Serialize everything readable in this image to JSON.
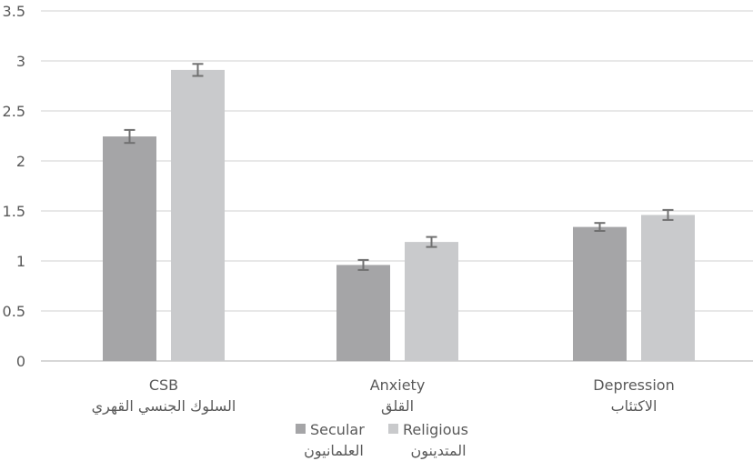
{
  "chart_data": {
    "type": "bar",
    "title": "",
    "xlabel": "",
    "ylabel": "",
    "ylim": [
      0,
      3.5
    ],
    "yticks": [
      "0",
      "0.5",
      "1",
      "1.5",
      "2",
      "2.5",
      "3",
      "3.5"
    ],
    "categories": [
      {
        "en": "CSB",
        "ar": "السلوك الجنسي القهري"
      },
      {
        "en": "Anxiety",
        "ar": "القلق"
      },
      {
        "en": "Depression",
        "ar": "الاكتئاب"
      }
    ],
    "series": [
      {
        "name": "Secular",
        "name_ar": "العلمانيون",
        "color": "#a5a5a7",
        "values": [
          2.245,
          0.96,
          1.34
        ],
        "errors": [
          0.065,
          0.05,
          0.04
        ]
      },
      {
        "name": "Religious",
        "name_ar": "المتدينون",
        "color": "#c9cacc",
        "values": [
          2.91,
          1.19,
          1.46
        ],
        "errors": [
          0.06,
          0.05,
          0.05
        ]
      }
    ],
    "grid": true,
    "legend": "bottom"
  }
}
